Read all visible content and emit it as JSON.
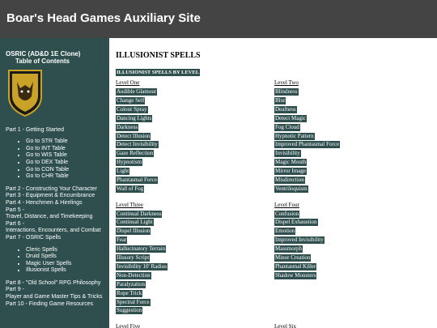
{
  "header": {
    "title": "Boar's Head Games Auxiliary Site"
  },
  "sidebar": {
    "heading": [
      "OSRIC (AD&D 1E Clone)",
      "Table of Contents"
    ],
    "groups": [
      {
        "parts": [
          [
            "Part 1 - Getting Started"
          ]
        ],
        "bullets": [
          "Go to STR Table",
          "Go to INT Table",
          "Go to WIS Table",
          "Go to DEX Table",
          "Go to CON Table",
          "Go to CHR Table"
        ]
      },
      {
        "parts": [
          [
            "Part 2 - Constructing Your Character"
          ],
          [
            "Part 3 - Equipment & Encumbrance"
          ],
          [
            "Part 4 - Henchmen & Hirelings"
          ],
          [
            "Part 5 -",
            "Travel, Distance, and Timekeeping"
          ],
          [
            "Part 6 -",
            "Interactions, Encounters, and Combat"
          ],
          [
            "Part 7 - OSRIC Spells"
          ]
        ],
        "bullets": [
          "Cleric Spells",
          "Druid Spells",
          "Magic User Spells",
          "Illusionist Spells"
        ]
      },
      {
        "parts": [
          [
            "Part 8 - \"Old School\" RPG Philosophy"
          ],
          [
            "Part 9 -",
            "Player and Game Master Tips & Tricks"
          ],
          [
            "Part 10 - Finding Game Resources"
          ]
        ]
      }
    ]
  },
  "content": {
    "title": "ILLUSIONIST SPELLS",
    "subtitle": "ILLUSIONIST SPELLS BY LEVEL",
    "levels": [
      {
        "name": "Level One",
        "spells": [
          "Audible Glamour",
          "Change Self",
          "Colour Spray",
          "Dancing Lights",
          "Darkness",
          "Detect Illusion",
          "Detect Invisibility",
          "Gaze Reflection",
          "Hypnotism",
          "Light",
          "Phantasmal Force",
          "Wall of Fog"
        ]
      },
      {
        "name": "Level Two",
        "spells": [
          "Blindness",
          "Blur",
          "Deafness",
          "Detect Magic",
          "Fog Cloud",
          "Hypnotic Pattern",
          "Improved Phantasmal Force",
          "Invisibility",
          "Magic Mouth",
          "Mirror Image",
          "Misdirection",
          "Ventriloquism"
        ]
      },
      {
        "name": "Level Three",
        "spells": [
          "Continual Darkness",
          "Continual Light",
          "Dispel Illusion",
          "Fear",
          "Hallucinatory Terrain",
          "Illusory Script",
          "Invisibility 10' Radius",
          "Non-Detection",
          "Paralyzation",
          "Rope Trick",
          "Spectral Force",
          "Suggestion"
        ]
      },
      {
        "name": "Level Four",
        "spells": [
          "Confusion",
          "Dispel Exhaustion",
          "Emotion",
          "Improved Invisibility",
          "Massmorph",
          "Minor Creation",
          "Phantasmal Killer",
          "Shadow Monsters"
        ]
      },
      {
        "name": "Level Five",
        "spells": []
      },
      {
        "name": "Level Six",
        "spells": []
      }
    ]
  }
}
